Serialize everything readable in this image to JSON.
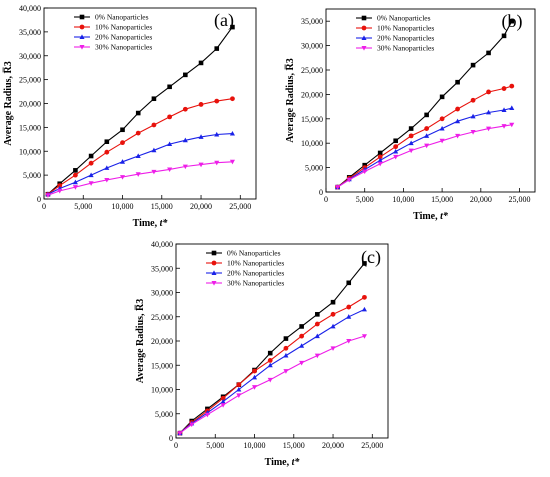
{
  "chart_data": [
    {
      "type": "line",
      "panel_label": "(a)",
      "xlabel": "Time, t*",
      "ylabel": "Average Radius, R̅3",
      "xlim": [
        0,
        27000
      ],
      "ylim": [
        0,
        40000
      ],
      "xticks": [
        0,
        5000,
        10000,
        15000,
        20000,
        25000
      ],
      "xtick_labels": [
        "0",
        "5,000",
        "10,000",
        "15,000",
        "20,000",
        "25,000"
      ],
      "yticks": [
        0,
        5000,
        10000,
        15000,
        20000,
        25000,
        30000,
        35000,
        40000
      ],
      "ytick_labels": [
        "0",
        "5,000",
        "10,000",
        "15,000",
        "20,000",
        "25,000",
        "30,000",
        "35,000",
        "40,000"
      ],
      "legend_position": "top-left",
      "series": [
        {
          "name": "0%  Nanoparticles",
          "color": "#000000",
          "marker": "square",
          "x": [
            500,
            2000,
            4000,
            6000,
            8000,
            10000,
            12000,
            14000,
            16000,
            18000,
            20000,
            22000,
            24000
          ],
          "y": [
            1000,
            3200,
            6000,
            9000,
            12000,
            14500,
            18000,
            21000,
            23500,
            26000,
            28500,
            31500,
            36000
          ]
        },
        {
          "name": "10% Nanoparticles",
          "color": "#e8120c",
          "marker": "circle",
          "x": [
            500,
            2000,
            4000,
            6000,
            8000,
            10000,
            12000,
            14000,
            16000,
            18000,
            20000,
            22000,
            24000
          ],
          "y": [
            1000,
            2800,
            5000,
            7500,
            9800,
            11800,
            13800,
            15500,
            17200,
            18800,
            19800,
            20500,
            21000
          ]
        },
        {
          "name": "20% Nanoparticles",
          "color": "#1a22e8",
          "marker": "triangle-up",
          "x": [
            500,
            2000,
            4000,
            6000,
            8000,
            10000,
            12000,
            14000,
            16000,
            18000,
            20000,
            22000,
            24000
          ],
          "y": [
            1000,
            2200,
            3500,
            5000,
            6500,
            7800,
            9000,
            10200,
            11500,
            12300,
            13000,
            13500,
            13700
          ]
        },
        {
          "name": "30% Nanoparticles",
          "color": "#ee1ee8",
          "marker": "triangle-down",
          "x": [
            500,
            2000,
            4000,
            6000,
            8000,
            10000,
            12000,
            14000,
            16000,
            18000,
            20000,
            22000,
            24000
          ],
          "y": [
            800,
            1700,
            2500,
            3300,
            4000,
            4600,
            5200,
            5700,
            6200,
            6800,
            7200,
            7600,
            7800
          ]
        }
      ]
    },
    {
      "type": "line",
      "panel_label": "(b)",
      "xlabel": "Time, t*",
      "ylabel": "Average Radius, R̅3",
      "xlim": [
        0,
        27000
      ],
      "ylim": [
        0,
        37500
      ],
      "xticks": [
        0,
        5000,
        10000,
        15000,
        20000,
        25000
      ],
      "xtick_labels": [
        "0",
        "5,000",
        "10,000",
        "15,000",
        "20,000",
        "25,000"
      ],
      "yticks": [
        0,
        5000,
        10000,
        15000,
        20000,
        25000,
        30000,
        35000
      ],
      "ytick_labels": [
        "0",
        "5,000",
        "10,000",
        "15,000",
        "20,000",
        "25,000",
        "30,000",
        "35,000"
      ],
      "legend_position": "top-left",
      "series": [
        {
          "name": "0%  Nanoparticles",
          "color": "#000000",
          "marker": "square",
          "x": [
            1500,
            3000,
            5000,
            7000,
            9000,
            11000,
            13000,
            15000,
            17000,
            19000,
            21000,
            23000,
            24000
          ],
          "y": [
            1000,
            3000,
            5500,
            8000,
            10500,
            13000,
            15800,
            19500,
            22500,
            26000,
            28500,
            32000,
            35000
          ]
        },
        {
          "name": "10% Nanoparticles",
          "color": "#e8120c",
          "marker": "circle",
          "x": [
            1500,
            3000,
            5000,
            7000,
            9000,
            11000,
            13000,
            15000,
            17000,
            19000,
            21000,
            23000,
            24000
          ],
          "y": [
            1000,
            2800,
            5000,
            7200,
            9300,
            11500,
            13000,
            15000,
            17000,
            18800,
            20500,
            21200,
            21700
          ]
        },
        {
          "name": "20% Nanoparticles",
          "color": "#1a22e8",
          "marker": "triangle-up",
          "x": [
            1500,
            3000,
            5000,
            7000,
            9000,
            11000,
            13000,
            15000,
            17000,
            19000,
            21000,
            23000,
            24000
          ],
          "y": [
            1000,
            2600,
            4600,
            6500,
            8300,
            10000,
            11500,
            13000,
            14500,
            15500,
            16300,
            16800,
            17200
          ]
        },
        {
          "name": "30% Nanoparticles",
          "color": "#ee1ee8",
          "marker": "triangle-down",
          "x": [
            1500,
            3000,
            5000,
            7000,
            9000,
            11000,
            13000,
            15000,
            17000,
            19000,
            21000,
            23000,
            24000
          ],
          "y": [
            1000,
            2500,
            4200,
            5800,
            7200,
            8500,
            9500,
            10500,
            11500,
            12300,
            13000,
            13500,
            13800
          ]
        }
      ]
    },
    {
      "type": "line",
      "panel_label": "(c)",
      "xlabel": "Time, t*",
      "ylabel": "Average Radius, R̅3",
      "xlim": [
        0,
        27000
      ],
      "ylim": [
        0,
        40000
      ],
      "xticks": [
        0,
        5000,
        10000,
        15000,
        20000,
        25000
      ],
      "xtick_labels": [
        "0",
        "5,000",
        "10,000",
        "15,000",
        "20,000",
        "25,000"
      ],
      "yticks": [
        0,
        5000,
        10000,
        15000,
        20000,
        25000,
        30000,
        35000,
        40000
      ],
      "ytick_labels": [
        "0",
        "5,000",
        "10,000",
        "15,000",
        "20,000",
        "25,000",
        "30,000",
        "35,000",
        "40,000"
      ],
      "legend_position": "top-left",
      "series": [
        {
          "name": "0%   Nanoparticles",
          "color": "#000000",
          "marker": "square",
          "x": [
            500,
            2000,
            4000,
            6000,
            8000,
            10000,
            12000,
            14000,
            16000,
            18000,
            20000,
            22000,
            24000
          ],
          "y": [
            1000,
            3500,
            6000,
            8500,
            11000,
            14000,
            17500,
            20500,
            23000,
            25500,
            28000,
            32000,
            36000
          ]
        },
        {
          "name": "10% Nanoparticles",
          "color": "#e8120c",
          "marker": "circle",
          "x": [
            500,
            2000,
            4000,
            6000,
            8000,
            10000,
            12000,
            14000,
            16000,
            18000,
            20000,
            22000,
            24000
          ],
          "y": [
            1000,
            3200,
            5600,
            8200,
            11000,
            13800,
            16000,
            18500,
            21000,
            23500,
            25500,
            27000,
            29000
          ]
        },
        {
          "name": "20% Nanoparticles",
          "color": "#1a22e8",
          "marker": "triangle-up",
          "x": [
            500,
            2000,
            4000,
            6000,
            8000,
            10000,
            12000,
            14000,
            16000,
            18000,
            20000,
            22000,
            24000
          ],
          "y": [
            1000,
            3000,
            5200,
            7500,
            10000,
            12500,
            15000,
            17000,
            19000,
            21000,
            23000,
            25000,
            26500
          ]
        },
        {
          "name": "30% Nanoparticles",
          "color": "#ee1ee8",
          "marker": "triangle-down",
          "x": [
            500,
            2000,
            4000,
            6000,
            8000,
            10000,
            12000,
            14000,
            16000,
            18000,
            20000,
            22000,
            24000
          ],
          "y": [
            1000,
            2800,
            4800,
            6800,
            8800,
            10500,
            12000,
            13800,
            15500,
            17000,
            18500,
            20000,
            21000
          ]
        }
      ]
    }
  ]
}
